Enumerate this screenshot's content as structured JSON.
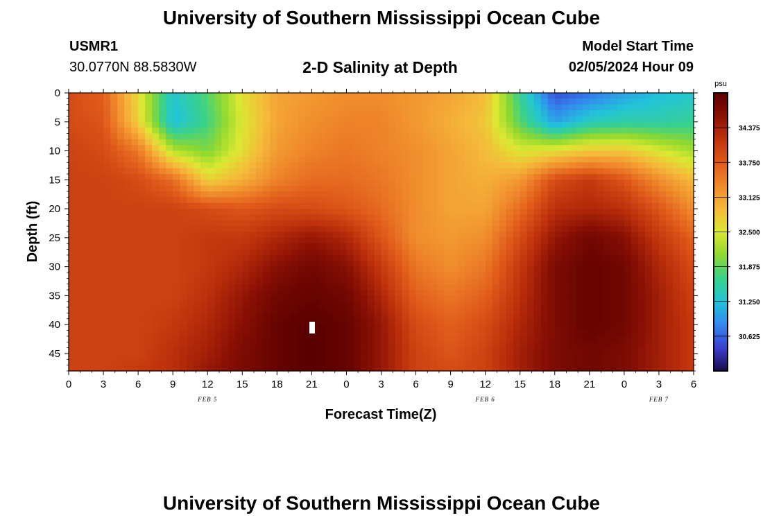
{
  "header": {
    "title": "University of Southern Mississippi Ocean Cube",
    "station_id": "USMR1",
    "station_coords": "30.0770N  88.5830W",
    "plot_title": "2-D Salinity at Depth",
    "start_label": "Model Start Time",
    "start_value": "02/05/2024 Hour 09"
  },
  "footer": {
    "title": "University of Southern Mississippi Ocean Cube"
  },
  "chart_data": {
    "type": "heatmap",
    "title": "2-D Salinity at Depth",
    "xlabel": "Forecast Time(Z)",
    "ylabel": "Depth (ft)",
    "x_unit": "hours since 02/05 00Z",
    "xlim": [
      0,
      54
    ],
    "ylim": [
      0,
      48
    ],
    "y_inverted": true,
    "x_ticks": [
      {
        "t": 0,
        "label": "0"
      },
      {
        "t": 3,
        "label": "3"
      },
      {
        "t": 6,
        "label": "6"
      },
      {
        "t": 9,
        "label": "9"
      },
      {
        "t": 12,
        "label": "12"
      },
      {
        "t": 15,
        "label": "15"
      },
      {
        "t": 18,
        "label": "18"
      },
      {
        "t": 21,
        "label": "21"
      },
      {
        "t": 24,
        "label": "0"
      },
      {
        "t": 27,
        "label": "3"
      },
      {
        "t": 30,
        "label": "6"
      },
      {
        "t": 33,
        "label": "9"
      },
      {
        "t": 36,
        "label": "12"
      },
      {
        "t": 39,
        "label": "15"
      },
      {
        "t": 42,
        "label": "18"
      },
      {
        "t": 45,
        "label": "21"
      },
      {
        "t": 48,
        "label": "0"
      },
      {
        "t": 51,
        "label": "3"
      },
      {
        "t": 54,
        "label": "6"
      }
    ],
    "y_ticks": [
      0,
      5,
      10,
      15,
      20,
      25,
      30,
      35,
      40,
      45
    ],
    "date_labels": [
      {
        "t": 12,
        "label": "FEB 5"
      },
      {
        "t": 36,
        "label": "FEB 6"
      },
      {
        "t": 51,
        "label": "FEB 7"
      }
    ],
    "colorbar": {
      "unit": "psu",
      "range": [
        30.0,
        35.0
      ],
      "ticks": [
        30.625,
        31.25,
        31.875,
        32.5,
        33.125,
        33.75,
        34.375
      ],
      "tick_labels": [
        "30.625",
        "31.250",
        "31.875",
        "32.500",
        "33.125",
        "33.750",
        "34.375"
      ],
      "colors": [
        "#1b0a4a",
        "#3a3fd0",
        "#3388ee",
        "#22c4d8",
        "#3ad28a",
        "#8ed830",
        "#dce831",
        "#f5b93a",
        "#f08a2c",
        "#e05a1a",
        "#c0320c",
        "#8a1004",
        "#5a0000"
      ]
    },
    "grid": {
      "times": [
        0,
        3,
        6,
        9,
        12,
        15,
        18,
        21,
        24,
        27,
        30,
        33,
        36,
        39,
        42,
        45,
        48,
        51,
        54
      ],
      "depths": [
        0,
        5,
        10,
        15,
        20,
        25,
        30,
        35,
        40,
        45,
        48
      ],
      "salinity": [
        [
          33.9,
          33.7,
          32.6,
          31.3,
          31.8,
          32.6,
          33.1,
          33.2,
          33.3,
          33.3,
          33.2,
          33.1,
          32.9,
          31.6,
          30.5,
          30.7,
          31.0,
          31.2,
          31.3
        ],
        [
          33.9,
          33.8,
          32.7,
          31.2,
          31.7,
          32.5,
          33.1,
          33.3,
          33.4,
          33.4,
          33.2,
          33.0,
          32.8,
          31.8,
          31.0,
          31.4,
          31.5,
          31.5,
          31.6
        ],
        [
          34.0,
          33.9,
          33.5,
          32.3,
          32.0,
          32.6,
          33.2,
          33.4,
          33.5,
          33.4,
          33.3,
          33.1,
          32.9,
          32.5,
          32.6,
          32.8,
          32.8,
          32.5,
          32.2
        ],
        [
          34.0,
          34.0,
          33.9,
          33.6,
          32.7,
          33.0,
          33.4,
          33.6,
          33.6,
          33.5,
          33.3,
          33.1,
          33.0,
          33.2,
          33.9,
          34.1,
          33.8,
          33.3,
          32.9
        ],
        [
          34.0,
          34.0,
          34.0,
          34.0,
          33.9,
          33.8,
          33.9,
          33.9,
          33.8,
          33.6,
          33.3,
          33.1,
          33.1,
          33.6,
          34.2,
          34.3,
          34.2,
          33.8,
          33.3
        ],
        [
          34.0,
          34.0,
          34.0,
          34.0,
          34.1,
          34.1,
          34.3,
          34.5,
          34.3,
          33.8,
          33.3,
          33.2,
          33.3,
          33.9,
          34.5,
          34.8,
          34.6,
          34.1,
          33.7
        ],
        [
          34.0,
          34.0,
          34.0,
          34.0,
          34.1,
          34.3,
          34.6,
          34.8,
          34.6,
          34.1,
          33.5,
          33.3,
          33.5,
          34.1,
          34.7,
          34.9,
          34.8,
          34.3,
          33.9
        ],
        [
          34.0,
          34.0,
          34.0,
          34.0,
          34.2,
          34.5,
          34.8,
          34.9,
          34.8,
          34.3,
          33.7,
          33.5,
          33.7,
          34.2,
          34.7,
          34.9,
          34.8,
          34.4,
          34.0
        ],
        [
          34.0,
          34.0,
          34.0,
          34.1,
          34.3,
          34.6,
          34.9,
          35.0,
          34.9,
          34.5,
          33.9,
          33.7,
          33.9,
          34.3,
          34.7,
          34.9,
          34.8,
          34.4,
          34.1
        ],
        [
          34.0,
          34.0,
          34.0,
          34.2,
          34.4,
          34.7,
          34.9,
          35.0,
          34.9,
          34.5,
          34.0,
          33.8,
          34.0,
          34.4,
          34.7,
          34.8,
          34.7,
          34.4,
          34.1
        ],
        [
          34.0,
          34.0,
          34.1,
          34.2,
          34.5,
          34.7,
          34.9,
          35.0,
          34.9,
          34.5,
          34.0,
          33.9,
          34.0,
          34.4,
          34.7,
          34.8,
          34.7,
          34.4,
          34.1
        ]
      ]
    }
  }
}
